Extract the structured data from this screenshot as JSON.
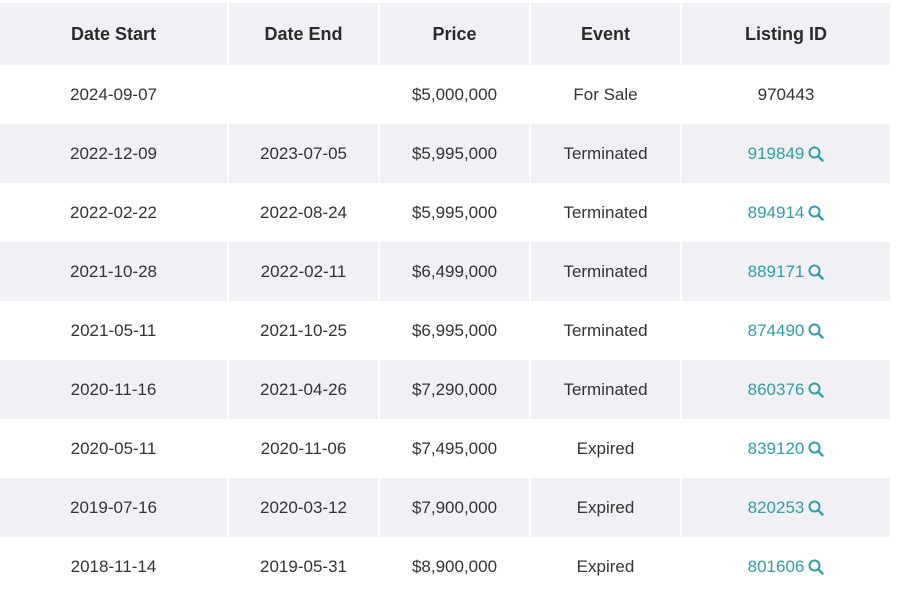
{
  "columns": [
    "Date Start",
    "Date End",
    "Price",
    "Event",
    "Listing ID"
  ],
  "rows": [
    {
      "date_start": "2024-09-07",
      "date_end": "",
      "price": "$5,000,000",
      "event": "For Sale",
      "listing_id": "970443",
      "linked": false
    },
    {
      "date_start": "2022-12-09",
      "date_end": "2023-07-05",
      "price": "$5,995,000",
      "event": "Terminated",
      "listing_id": "919849",
      "linked": true
    },
    {
      "date_start": "2022-02-22",
      "date_end": "2022-08-24",
      "price": "$5,995,000",
      "event": "Terminated",
      "listing_id": "894914",
      "linked": true
    },
    {
      "date_start": "2021-10-28",
      "date_end": "2022-02-11",
      "price": "$6,499,000",
      "event": "Terminated",
      "listing_id": "889171",
      "linked": true
    },
    {
      "date_start": "2021-05-11",
      "date_end": "2021-10-25",
      "price": "$6,995,000",
      "event": "Terminated",
      "listing_id": "874490",
      "linked": true
    },
    {
      "date_start": "2020-11-16",
      "date_end": "2021-04-26",
      "price": "$7,290,000",
      "event": "Terminated",
      "listing_id": "860376",
      "linked": true
    },
    {
      "date_start": "2020-05-11",
      "date_end": "2020-11-06",
      "price": "$7,495,000",
      "event": "Expired",
      "listing_id": "839120",
      "linked": true
    },
    {
      "date_start": "2019-07-16",
      "date_end": "2020-03-12",
      "price": "$7,900,000",
      "event": "Expired",
      "listing_id": "820253",
      "linked": true
    },
    {
      "date_start": "2018-11-14",
      "date_end": "2019-05-31",
      "price": "$8,900,000",
      "event": "Expired",
      "listing_id": "801606",
      "linked": true
    }
  ],
  "colors": {
    "header_bg": "#f1f1f5",
    "stripe_bg": "#f1f1f5",
    "link": "#2e9ea6",
    "text": "#333333"
  },
  "icons": {
    "listing_search": "search-icon"
  }
}
